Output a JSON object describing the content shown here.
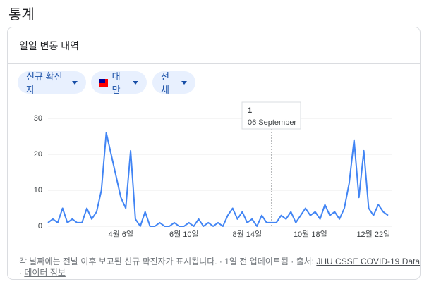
{
  "header": {
    "title": "통계"
  },
  "card": {
    "title": "일일 변동 내역",
    "chips": [
      "신규 확진자",
      "대만",
      "전체"
    ],
    "footer": {
      "note": "각 날짜에는 전날 이후 보고된 신규 확진자가 표시됩니다. · 1일 전 업데이트됨 ·",
      "source_label": "출처:",
      "source": "JHU CSSE COVID-19 Data",
      "about": "데이터 정보"
    },
    "tooltip": {
      "value": "1",
      "date": "06 September"
    }
  },
  "chart_data": {
    "type": "line",
    "color": "#4285f4",
    "grid": true,
    "categories": [
      null,
      null,
      null,
      null,
      null,
      null,
      null,
      null,
      null,
      null,
      null,
      null,
      null,
      null,
      null,
      "4월 6일",
      null,
      null,
      null,
      null,
      null,
      null,
      null,
      null,
      null,
      null,
      null,
      null,
      "6월 10일",
      null,
      null,
      null,
      null,
      null,
      null,
      null,
      null,
      null,
      null,
      null,
      null,
      "8월 14일",
      null,
      null,
      null,
      null,
      null,
      null,
      null,
      null,
      null,
      null,
      null,
      null,
      "10월 18일",
      null,
      null,
      null,
      null,
      null,
      null,
      null,
      null,
      null,
      null,
      null,
      null,
      "12월 22일",
      null,
      null,
      null
    ],
    "values": [
      1,
      2,
      1,
      5,
      1,
      2,
      1,
      1,
      5,
      2,
      4,
      10,
      26,
      20,
      14,
      8,
      5,
      21,
      2,
      0,
      4,
      0,
      0,
      1,
      0,
      0,
      1,
      0,
      0,
      1,
      0,
      2,
      0,
      1,
      0,
      1,
      0,
      3,
      5,
      2,
      4,
      1,
      2,
      0,
      3,
      1,
      1,
      1,
      3,
      2,
      4,
      1,
      3,
      5,
      3,
      4,
      2,
      6,
      3,
      4,
      2,
      5,
      12,
      24,
      8,
      21,
      5,
      3,
      6,
      4,
      3
    ],
    "ylim": [
      0,
      30
    ],
    "yticks": [
      0,
      10,
      20,
      30
    ]
  }
}
